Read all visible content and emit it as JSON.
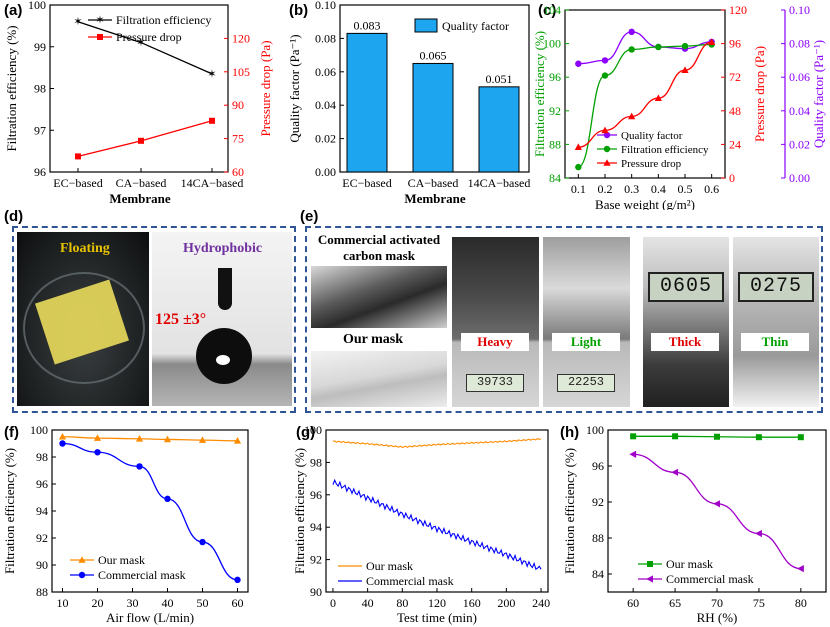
{
  "letters": {
    "a": "(a)",
    "b": "(b)",
    "c": "(c)",
    "d": "(d)",
    "e": "(e)",
    "f": "(f)",
    "g": "(g)",
    "h": "(h)"
  },
  "photos_d": {
    "floating": "Floating",
    "hydrophobic": "Hydrophobic",
    "angle": "125 ±3°"
  },
  "photos_e": {
    "commercial_line1": "Commercial activated",
    "commercial_line2": "carbon mask",
    "our_mask": "Our mask",
    "heavy": "Heavy",
    "light": "Light",
    "thick": "Thick",
    "thin": "Thin",
    "scale_heavy": "39733",
    "scale_light": "22253",
    "gauge_thick": "0605",
    "gauge_thin": "0275"
  },
  "colors": {
    "black": "#000000",
    "red": "#ff0000",
    "green": "#00a000",
    "purple": "#8b00ff",
    "blue": "#0000ff",
    "orange": "#ff8c00",
    "bar": "#1ea5f0",
    "magenta": "#a000c8"
  },
  "chart_data": [
    {
      "type": "line",
      "title": "",
      "xlabel": "Membrane",
      "ylabel": "Filtration efficiency (%)",
      "ylabel_right": "Pressure drop (Pa)",
      "categories": [
        "EC−based",
        "CA−based",
        "14CA−based"
      ],
      "ylim": [
        96,
        100
      ],
      "yticks": [
        96,
        97,
        98,
        99,
        100
      ],
      "ylim_right": [
        60,
        135
      ],
      "yticks_right": [
        60,
        75,
        90,
        105,
        120
      ],
      "series": [
        {
          "name": "Filtration efficiency",
          "axis": "left",
          "values": [
            99.6,
            99.1,
            98.35
          ]
        },
        {
          "name": "Pressure drop",
          "axis": "right",
          "values": [
            67,
            74,
            83
          ]
        }
      ]
    },
    {
      "type": "bar",
      "xlabel": "Membrane",
      "ylabel": "Quality factor (Pa⁻¹)",
      "categories": [
        "EC−based",
        "CA−based",
        "14CA−based"
      ],
      "values": [
        0.083,
        0.065,
        0.051
      ],
      "value_labels": [
        "0.083",
        "0.065",
        "0.051"
      ],
      "ylim": [
        0,
        0.1
      ],
      "yticks": [
        "0.00",
        "0.02",
        "0.04",
        "0.06",
        "0.08",
        "0.10"
      ],
      "legend": "Quality factor"
    },
    {
      "type": "line",
      "xlabel": "Base weight (g/m²)",
      "ylabel": "Filtration efficiency (%)",
      "ylabel_right": "Pressure drop (Pa)",
      "ylabel_right2": "Quality factor (Pa⁻¹)",
      "x": [
        0.1,
        0.2,
        0.3,
        0.4,
        0.5,
        0.6
      ],
      "xticks": [
        "0.1",
        "0.2",
        "0.3",
        "0.4",
        "0.5",
        "0.6"
      ],
      "ylim": [
        84,
        104
      ],
      "yticks": [
        84,
        88,
        92,
        96,
        100,
        104
      ],
      "ylim_right": [
        0,
        120
      ],
      "yticks_right": [
        0,
        24,
        48,
        72,
        96,
        120
      ],
      "ylim_right2": [
        0,
        0.1
      ],
      "yticks_right2": [
        "0.00",
        "0.02",
        "0.04",
        "0.06",
        "0.08",
        "0.10"
      ],
      "series": [
        {
          "name": "Quality factor",
          "axis": "right2",
          "values": [
            0.068,
            0.07,
            0.087,
            0.078,
            0.077,
            0.081
          ]
        },
        {
          "name": "Filtration efficiency",
          "axis": "left",
          "values": [
            85.3,
            96.2,
            99.3,
            99.6,
            99.7,
            99.9
          ]
        },
        {
          "name": "Pressure drop",
          "axis": "right",
          "values": [
            22,
            34,
            44,
            57,
            77,
            97
          ]
        }
      ]
    },
    {
      "type": "line",
      "xlabel": "Air flow (L/min)",
      "ylabel": "Filtration efficiency (%)",
      "x": [
        10,
        20,
        32,
        40,
        50,
        60
      ],
      "xticks": [
        10,
        20,
        30,
        40,
        50,
        60
      ],
      "xlim": [
        7,
        63
      ],
      "ylim": [
        88,
        100
      ],
      "yticks": [
        88,
        90,
        92,
        94,
        96,
        98,
        100
      ],
      "series": [
        {
          "name": "Our mask",
          "values": [
            99.5,
            99.4,
            99.35,
            99.3,
            99.25,
            99.2
          ]
        },
        {
          "name": "Commercial mask",
          "values": [
            99.0,
            98.35,
            97.3,
            94.9,
            91.7,
            88.9
          ]
        }
      ]
    },
    {
      "type": "line",
      "xlabel": "Test time (min)",
      "ylabel": "Filtration efficiency (%)",
      "x": [
        0,
        40,
        80,
        120,
        160,
        200,
        240
      ],
      "xticks": [
        0,
        40,
        80,
        120,
        160,
        200,
        240
      ],
      "xlim": [
        -8,
        248
      ],
      "ylim": [
        90,
        100
      ],
      "yticks": [
        90,
        92,
        94,
        96,
        98,
        100
      ],
      "series": [
        {
          "name": "Our mask",
          "values": [
            99.3,
            99.15,
            98.95,
            99.1,
            99.2,
            99.3,
            99.45
          ]
        },
        {
          "name": "Commercial mask",
          "values": [
            96.8,
            95.8,
            94.8,
            93.9,
            93.1,
            92.3,
            91.4
          ]
        }
      ]
    },
    {
      "type": "line",
      "xlabel": "RH (%)",
      "ylabel": "Filtration efficiency (%)",
      "x": [
        60,
        65,
        70,
        75,
        80
      ],
      "xticks": [
        60,
        65,
        70,
        75,
        80
      ],
      "xlim": [
        57,
        83
      ],
      "ylim": [
        82,
        100
      ],
      "yticks": [
        84,
        88,
        92,
        96,
        100
      ],
      "series": [
        {
          "name": "Our mask",
          "values": [
            99.3,
            99.3,
            99.25,
            99.2,
            99.2
          ]
        },
        {
          "name": "Commercial mask",
          "values": [
            97.3,
            95.3,
            91.8,
            88.5,
            84.6
          ]
        }
      ]
    }
  ]
}
